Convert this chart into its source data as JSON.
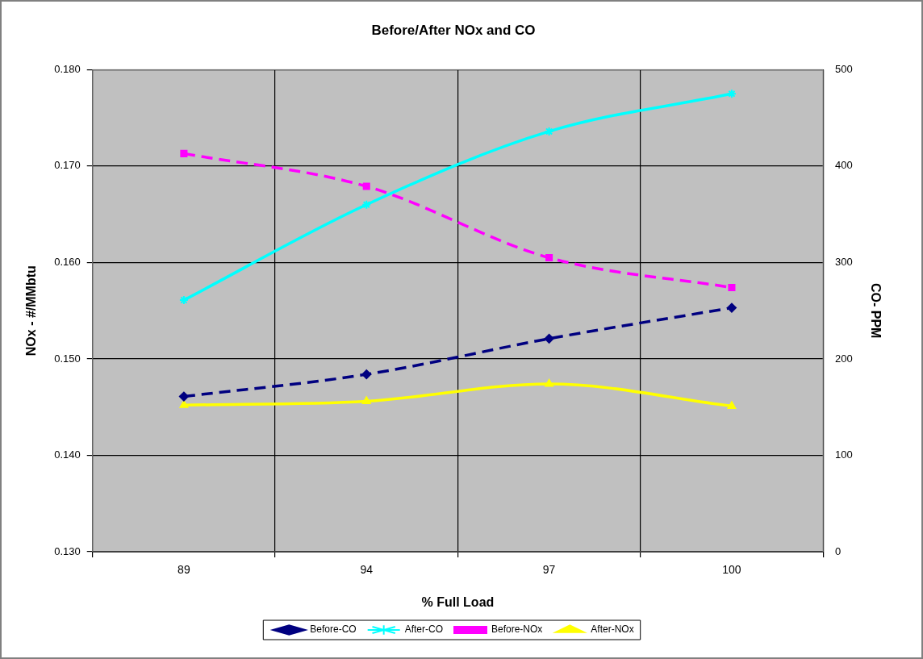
{
  "chart_data": {
    "type": "line",
    "title": "Before/After NOx and CO",
    "xlabel": "% Full Load",
    "ylabel": "NOx - #/MMbtu",
    "y2label": "CO- PPM",
    "categories": [
      "89",
      "94",
      "97",
      "100"
    ],
    "series": [
      {
        "name": "Before-CO",
        "color": "#000080",
        "axis": "y2",
        "marker": "diamond",
        "line_style": "dashed",
        "values": [
          161,
          184,
          221,
          253
        ]
      },
      {
        "name": "After-CO",
        "color": "#00ffff",
        "axis": "y2",
        "marker": "cross",
        "line_style": "solid",
        "values": [
          261,
          360,
          436,
          475
        ]
      },
      {
        "name": "Before-NOx",
        "color": "#ff00ff",
        "marker": "square",
        "line_style": "dashed",
        "values": [
          0.1713,
          0.1679,
          0.1605,
          0.1574
        ]
      },
      {
        "name": "After-NOx",
        "color": "#ffff00",
        "marker": "triangle",
        "line_style": "solid",
        "values": [
          0.1452,
          0.1456,
          0.1474,
          0.1451
        ]
      }
    ],
    "ylim": [
      0.13,
      0.18
    ],
    "yticks": [
      {
        "value": 0.13,
        "label": "0.130"
      },
      {
        "value": 0.14,
        "label": "0.140"
      },
      {
        "value": 0.15,
        "label": "0.150"
      },
      {
        "value": 0.16,
        "label": "0.160"
      },
      {
        "value": 0.17,
        "label": "0.170"
      },
      {
        "value": 0.18,
        "label": "0.180"
      }
    ],
    "y2lim": [
      0,
      500
    ],
    "y2ticks": [
      0,
      100,
      200,
      300,
      400,
      500
    ],
    "grid": true,
    "legend": "bottom"
  }
}
